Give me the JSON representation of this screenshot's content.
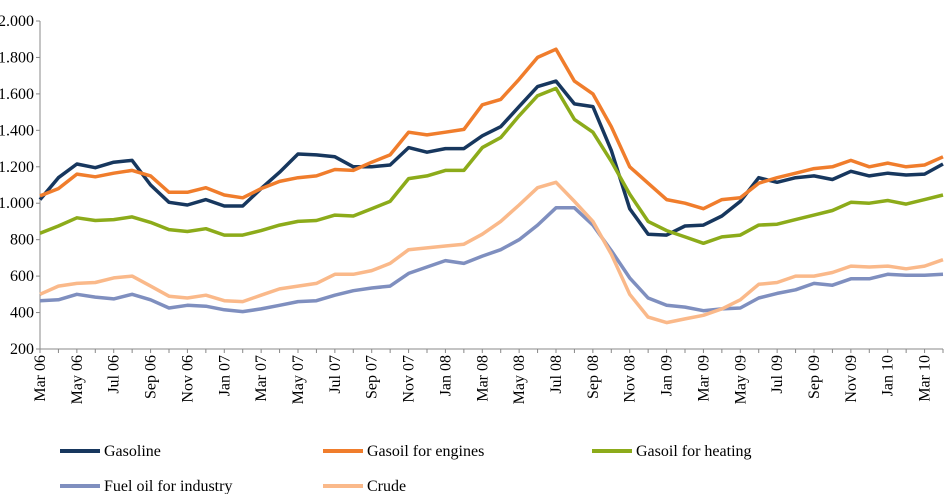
{
  "chart_data": {
    "type": "line",
    "categories": [
      "Mar 06",
      null,
      "May 06",
      null,
      "Jul 06",
      null,
      "Sep 06",
      null,
      "Nov 06",
      null,
      "Jan 07",
      null,
      "Mar 07",
      null,
      "May 07",
      null,
      "Jul 07",
      null,
      "Sep 07",
      null,
      "Nov 07",
      null,
      "Jan 08",
      null,
      "Mar 08",
      null,
      "May 08",
      null,
      "Jul 08",
      null,
      "Sep 08",
      null,
      "Nov 08",
      null,
      "Jan 09",
      null,
      "Mar 09",
      null,
      "May 09",
      null,
      "Jul 09",
      null,
      "Sep 09",
      null,
      "Nov 09",
      null,
      "Jan 10",
      null,
      "Mar 10",
      null
    ],
    "series": [
      {
        "name": "Gasoline",
        "color": "#17375e",
        "values": [
          1020,
          1140,
          1215,
          1195,
          1225,
          1235,
          1100,
          1005,
          990,
          1020,
          985,
          985,
          1080,
          1170,
          1270,
          1265,
          1255,
          1200,
          1200,
          1210,
          1305,
          1280,
          1300,
          1300,
          1370,
          1420,
          1530,
          1640,
          1670,
          1545,
          1530,
          1290,
          970,
          830,
          825,
          875,
          880,
          930,
          1010,
          1140,
          1115,
          1140,
          1150,
          1130,
          1175,
          1150,
          1165,
          1155,
          1160,
          1215
        ]
      },
      {
        "name": "Gasoil for engines",
        "color": "#f07d2c",
        "values": [
          1040,
          1080,
          1160,
          1145,
          1165,
          1180,
          1150,
          1060,
          1060,
          1085,
          1045,
          1030,
          1080,
          1120,
          1140,
          1150,
          1185,
          1180,
          1225,
          1265,
          1390,
          1375,
          1390,
          1405,
          1540,
          1570,
          1680,
          1800,
          1845,
          1670,
          1600,
          1420,
          1200,
          1110,
          1020,
          1000,
          970,
          1020,
          1030,
          1110,
          1140,
          1165,
          1190,
          1200,
          1235,
          1200,
          1220,
          1200,
          1210,
          1255
        ]
      },
      {
        "name": "Gasoil for heating",
        "color": "#8cab1a",
        "values": [
          835,
          875,
          920,
          905,
          910,
          925,
          895,
          855,
          845,
          860,
          825,
          825,
          850,
          880,
          900,
          905,
          935,
          930,
          970,
          1010,
          1135,
          1150,
          1180,
          1180,
          1305,
          1360,
          1480,
          1590,
          1630,
          1460,
          1390,
          1230,
          1050,
          900,
          850,
          815,
          780,
          815,
          825,
          880,
          885,
          910,
          935,
          960,
          1005,
          1000,
          1015,
          995,
          1020,
          1045
        ]
      },
      {
        "name": "Fuel oil for industry",
        "color": "#7f8fbf",
        "values": [
          465,
          470,
          500,
          485,
          475,
          500,
          470,
          425,
          440,
          435,
          415,
          405,
          420,
          440,
          460,
          465,
          495,
          520,
          535,
          545,
          615,
          650,
          685,
          670,
          710,
          745,
          800,
          880,
          975,
          975,
          880,
          740,
          590,
          480,
          440,
          430,
          410,
          420,
          425,
          480,
          505,
          525,
          560,
          550,
          585,
          585,
          610,
          605,
          605,
          610
        ]
      },
      {
        "name": "Crude",
        "color": "#fab98a",
        "values": [
          500,
          545,
          560,
          565,
          590,
          600,
          545,
          490,
          480,
          495,
          465,
          460,
          495,
          530,
          545,
          560,
          610,
          610,
          630,
          670,
          745,
          755,
          765,
          775,
          830,
          900,
          990,
          1085,
          1115,
          1010,
          900,
          720,
          500,
          375,
          345,
          365,
          385,
          420,
          470,
          555,
          565,
          600,
          600,
          620,
          655,
          650,
          655,
          640,
          655,
          690
        ]
      }
    ],
    "ylim": [
      200,
      2000
    ],
    "yticks": [
      200,
      400,
      600,
      800,
      {
        "value": 1000,
        "label": "1.000"
      },
      {
        "value": 1200,
        "label": "1.200"
      },
      {
        "value": 1400,
        "label": "1.400"
      },
      {
        "value": 1600,
        "label": "1.600"
      },
      {
        "value": 1800,
        "label": "1.800"
      },
      {
        "value": 2000,
        "label": "2.000"
      }
    ],
    "grid": false
  }
}
